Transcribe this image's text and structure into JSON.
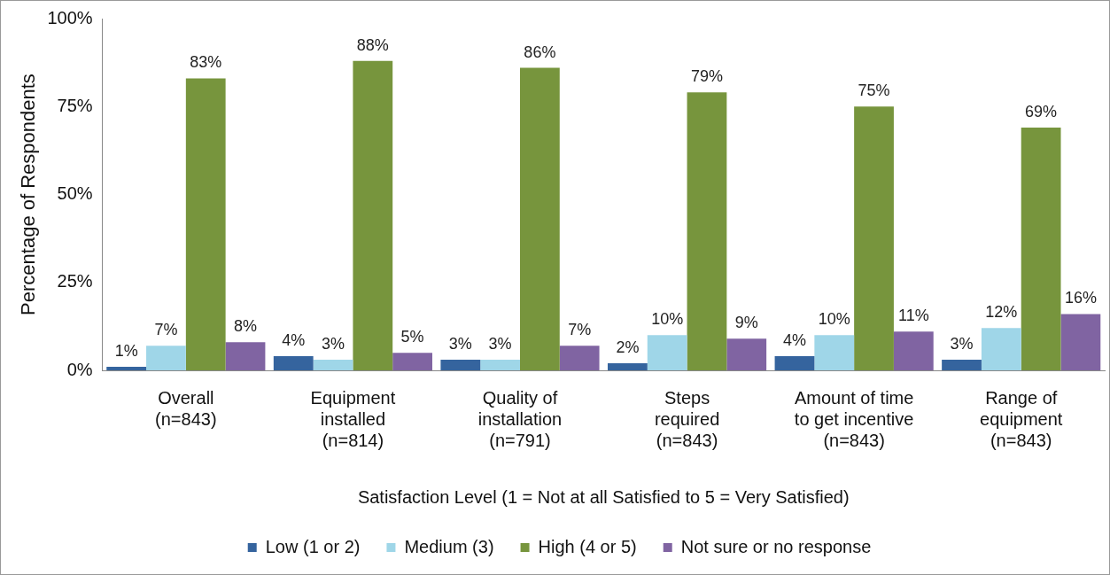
{
  "chart_data": {
    "type": "bar",
    "xlabel": "Satisfaction Level (1 = Not at all Satisfied to 5 = Very Satisfied)",
    "ylabel": "Percentage of Respondents",
    "categories": [
      "Overall\n(n=843)",
      "Equipment\ninstalled\n(n=814)",
      "Quality of\ninstallation\n(n=791)",
      "Steps\nrequired\n(n=843)",
      "Amount of time\nto get incentive\n(n=843)",
      "Range of\nequipment\n(n=843)"
    ],
    "series": [
      {
        "name": "Low (1 or 2)",
        "color": "#35649e",
        "values": [
          1,
          4,
          3,
          2,
          4,
          3
        ],
        "value_labels": [
          "1%",
          "4%",
          "3%",
          "2%",
          "4%",
          "3%"
        ]
      },
      {
        "name": "Medium (3)",
        "color": "#9fd6e8",
        "values": [
          7,
          3,
          3,
          10,
          10,
          12
        ],
        "value_labels": [
          "7%",
          "3%",
          "3%",
          "10%",
          "10%",
          "12%"
        ]
      },
      {
        "name": "High (4 or 5)",
        "color": "#77953d",
        "values": [
          83,
          88,
          86,
          79,
          75,
          69
        ],
        "value_labels": [
          "83%",
          "88%",
          "86%",
          "79%",
          "75%",
          "69%"
        ]
      },
      {
        "name": "Not sure or no response",
        "color": "#8064a2",
        "values": [
          8,
          5,
          7,
          9,
          11,
          16
        ],
        "value_labels": [
          "8%",
          "5%",
          "7%",
          "9%",
          "11%",
          "16%"
        ]
      }
    ],
    "ylim": [
      0,
      100
    ],
    "yticks": [
      {
        "value": 0,
        "label": "0%"
      },
      {
        "value": 25,
        "label": "25%"
      },
      {
        "value": 50,
        "label": "50%"
      },
      {
        "value": 75,
        "label": "75%"
      },
      {
        "value": 100,
        "label": "100%"
      }
    ],
    "grid": false,
    "legend": "bottom"
  }
}
